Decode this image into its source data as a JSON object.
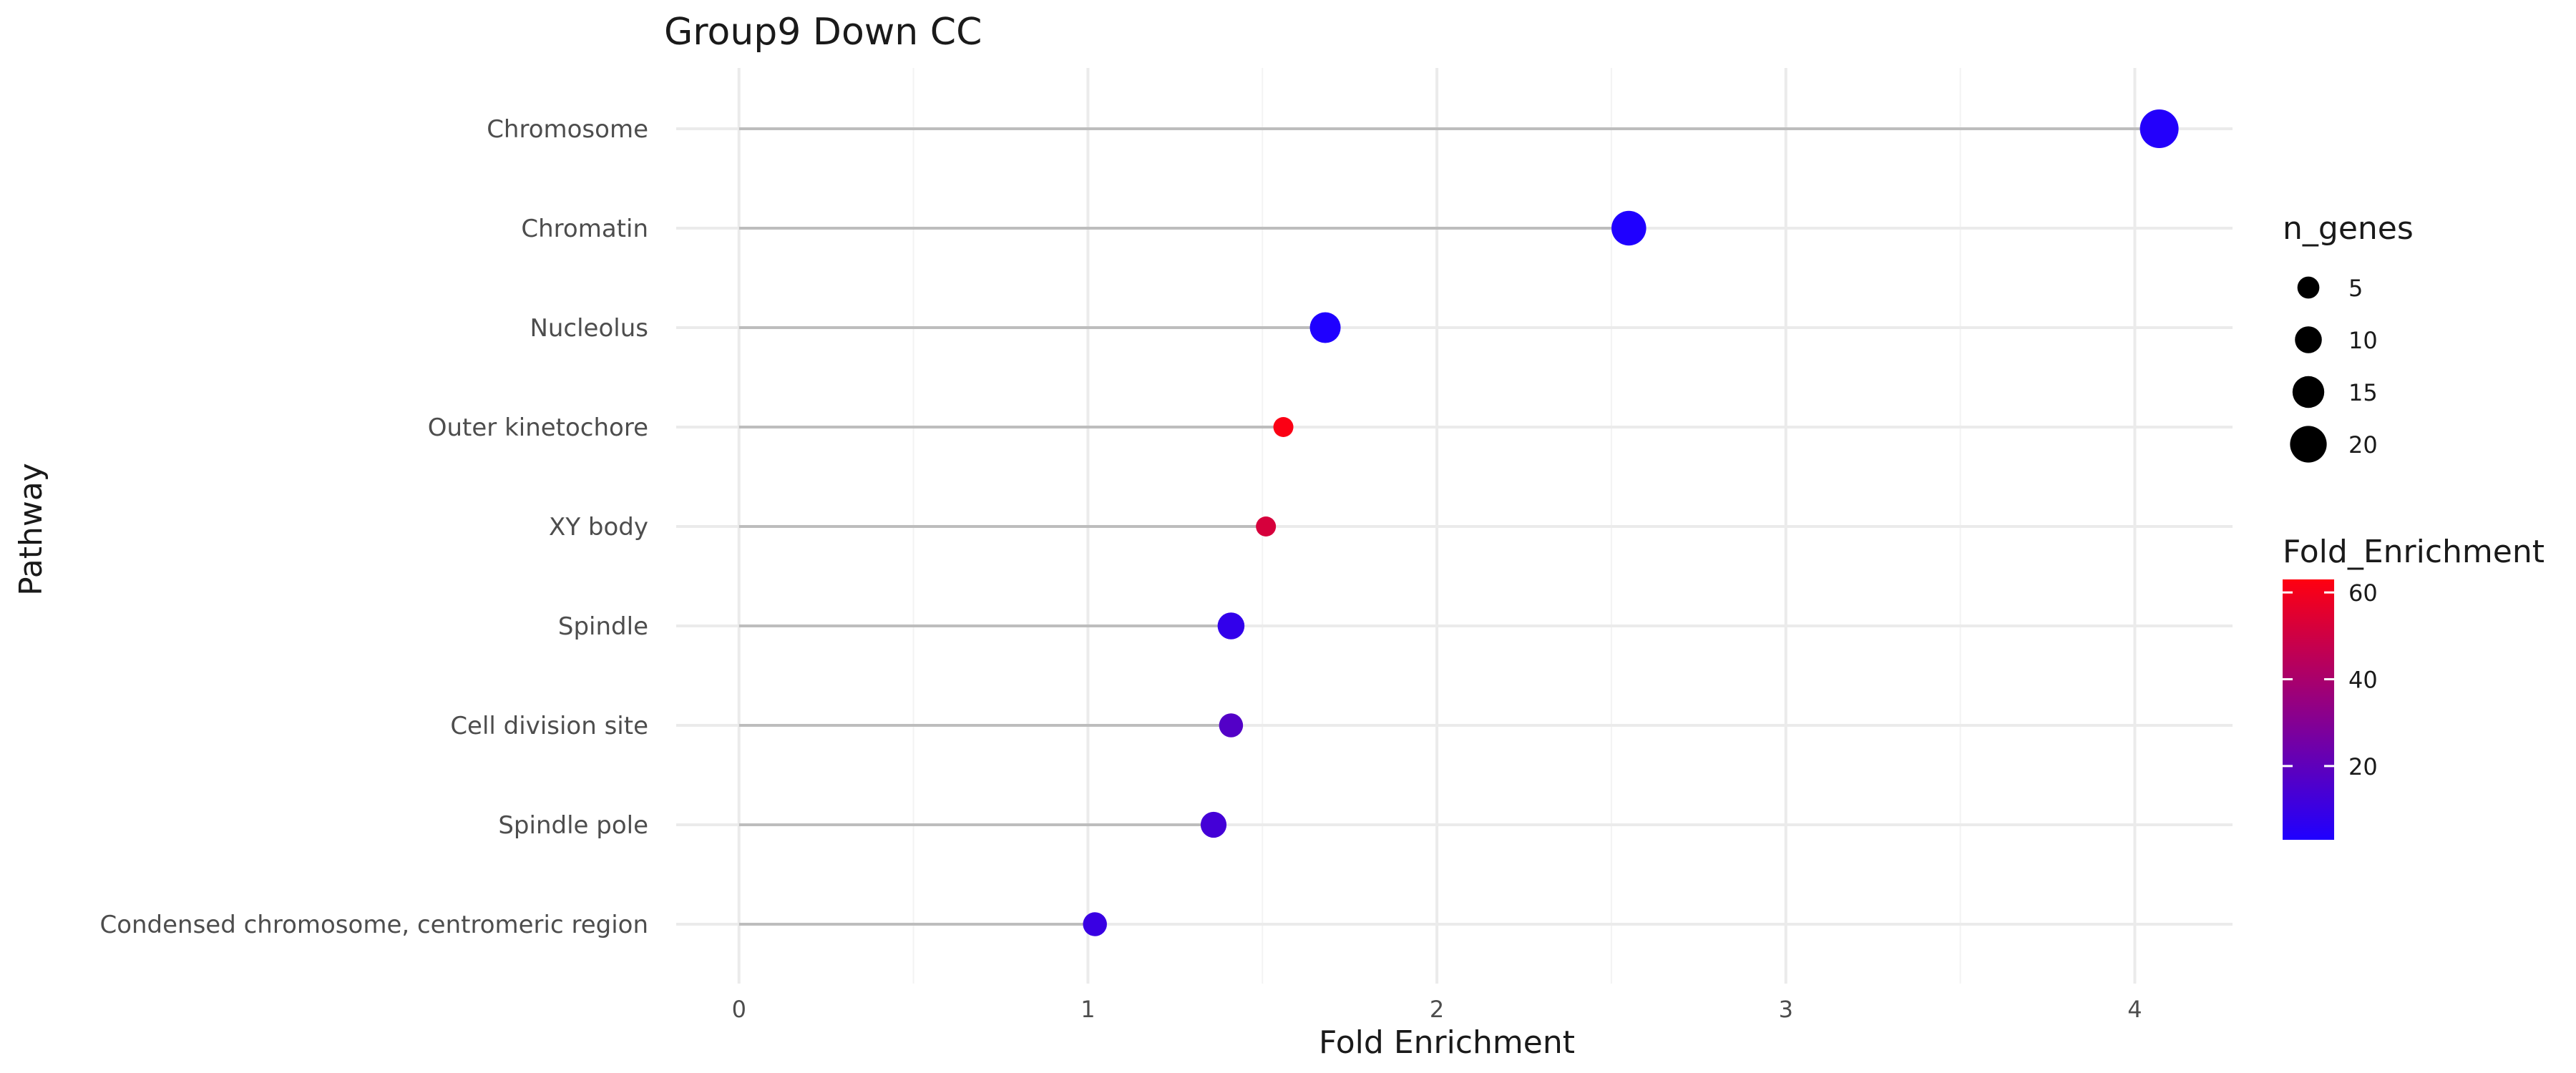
{
  "chart_data": {
    "type": "scatter",
    "title": "Group9 Down CC",
    "xlabel": "Fold Enrichment",
    "ylabel": "Pathway",
    "xlim": [
      -0.18,
      4.28
    ],
    "x_ticks": [
      0,
      1,
      2,
      3,
      4
    ],
    "grid": true,
    "legend_position": "right",
    "categories": [
      "Chromosome",
      "Chromatin",
      "Nucleolus",
      "Outer kinetochore",
      "XY body",
      "Spindle",
      "Cell division site",
      "Spindle pole",
      "Condensed chromosome, centromeric region"
    ],
    "points": [
      {
        "category": "Chromosome",
        "x": 4.07,
        "n_genes": 22,
        "fold_enrichment": 4
      },
      {
        "category": "Chromatin",
        "x": 2.55,
        "n_genes": 18,
        "fold_enrichment": 3
      },
      {
        "category": "Nucleolus",
        "x": 1.68,
        "n_genes": 14,
        "fold_enrichment": 3
      },
      {
        "category": "Outer kinetochore",
        "x": 1.56,
        "n_genes": 3,
        "fold_enrichment": 62
      },
      {
        "category": "XY body",
        "x": 1.51,
        "n_genes": 3,
        "fold_enrichment": 52
      },
      {
        "category": "Spindle",
        "x": 1.41,
        "n_genes": 10,
        "fold_enrichment": 8
      },
      {
        "category": "Cell division site",
        "x": 1.41,
        "n_genes": 7,
        "fold_enrichment": 17
      },
      {
        "category": "Spindle pole",
        "x": 1.36,
        "n_genes": 9,
        "fold_enrichment": 13
      },
      {
        "category": "Condensed chromosome, centromeric region",
        "x": 1.02,
        "n_genes": 7,
        "fold_enrichment": 10
      }
    ],
    "size_legend": {
      "title": "n_genes",
      "breaks": [
        5,
        10,
        15,
        20
      ],
      "range": [
        3,
        22
      ]
    },
    "color_legend": {
      "title": "Fold_Enrichment",
      "breaks": [
        20,
        40,
        60
      ],
      "range": [
        3,
        63
      ],
      "low_color": "#1f00ff",
      "high_color": "#ff0010"
    },
    "colors": {
      "point_low": "#1f00ff",
      "point_high": "#ff0010",
      "stem": "#bdbdbd",
      "size_legend_point": "#000000"
    }
  }
}
